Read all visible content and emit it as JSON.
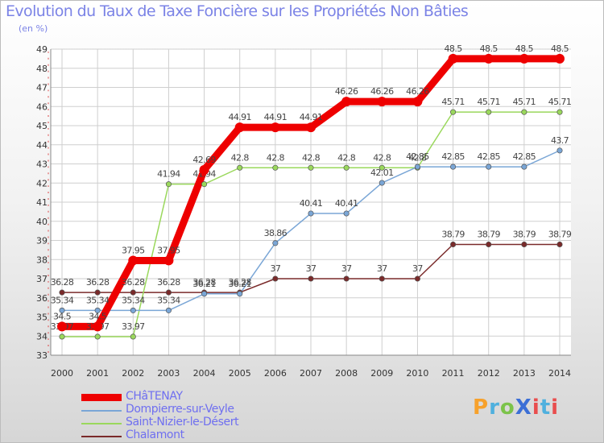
{
  "title": "Evolution du Taux de Taxe Foncière sur les Propriétés Non Bâties",
  "subtitle": "(en %)",
  "brand": "ProXiti",
  "chart_data": {
    "type": "line",
    "title": "Evolution du Taux de Taxe Foncière sur les Propriétés Non Bâties",
    "ylabel": "(en %)",
    "xlabel": "",
    "ylim": [
      33,
      49
    ],
    "yticks": [
      33,
      34,
      35,
      36,
      37,
      38,
      39,
      40,
      41,
      42,
      43,
      44,
      45,
      46,
      47,
      48,
      49
    ],
    "grid": true,
    "categories": [
      "2000",
      "2001",
      "2002",
      "2003",
      "2004",
      "2005",
      "2006",
      "2007",
      "2008",
      "2009",
      "2010",
      "2011",
      "2012",
      "2013",
      "2014"
    ],
    "series": [
      {
        "name": "Chalamont",
        "color": "#7a2a2a",
        "values": [
          36.28,
          36.28,
          36.28,
          36.28,
          36.28,
          36.28,
          37,
          37,
          37,
          37,
          37,
          38.79,
          38.79,
          38.79,
          38.79
        ],
        "labels": [
          "36.28",
          "36.28",
          "36.28",
          "36.28",
          "36.28",
          "36.28",
          "37",
          "37",
          "37",
          "37",
          "37",
          "38.79",
          "38.79",
          "38.79",
          "38.79"
        ]
      },
      {
        "name": "Saint-Nizier-le-Désert",
        "color": "#9ad85c",
        "values": [
          33.97,
          33.97,
          33.97,
          41.94,
          41.94,
          42.8,
          42.8,
          42.8,
          42.8,
          42.8,
          42.8,
          45.71,
          45.71,
          45.71,
          45.71
        ],
        "labels": [
          "33.97",
          "33.97",
          "33.97",
          "41.94",
          "41.94",
          "42.8",
          "42.8",
          "42.8",
          "42.8",
          "42.8",
          "42.8",
          "45.71",
          "45.71",
          "45.71",
          "45.71"
        ]
      },
      {
        "name": "Dompierre-sur-Veyle",
        "color": "#7aa6d6",
        "values": [
          35.34,
          35.34,
          35.34,
          35.34,
          36.21,
          36.21,
          38.86,
          40.41,
          40.41,
          42.01,
          42.85,
          42.85,
          42.85,
          42.85,
          43.7
        ],
        "labels": [
          "35.34",
          "35.34",
          "35.34",
          "35.34",
          "36.21",
          "36.21",
          "38.86",
          "40.41",
          "40.41",
          "42.01",
          "42.85",
          "42.85",
          "42.85",
          "42.85",
          "43.7"
        ]
      },
      {
        "name": "CHâTENAY",
        "color": "#ee0000",
        "values": [
          34.5,
          34.5,
          37.95,
          37.95,
          42.69,
          44.91,
          44.91,
          44.91,
          46.26,
          46.26,
          46.26,
          48.5,
          48.5,
          48.5,
          48.5
        ],
        "labels": [
          "34.5",
          "34.5",
          "37.95",
          "37.95",
          "42.69",
          "44.91",
          "44.91",
          "44.91",
          "46.26",
          "46.26",
          "46.26",
          "48.5",
          "48.5",
          "48.5",
          "48.5"
        ]
      }
    ]
  },
  "legend": [
    {
      "label": "CHâTENAY",
      "color": "#ee0000"
    },
    {
      "label": "Dompierre-sur-Veyle",
      "color": "#7aa6d6"
    },
    {
      "label": "Saint-Nizier-le-Désert",
      "color": "#9ad85c"
    },
    {
      "label": "Chalamont",
      "color": "#7a2a2a"
    }
  ]
}
